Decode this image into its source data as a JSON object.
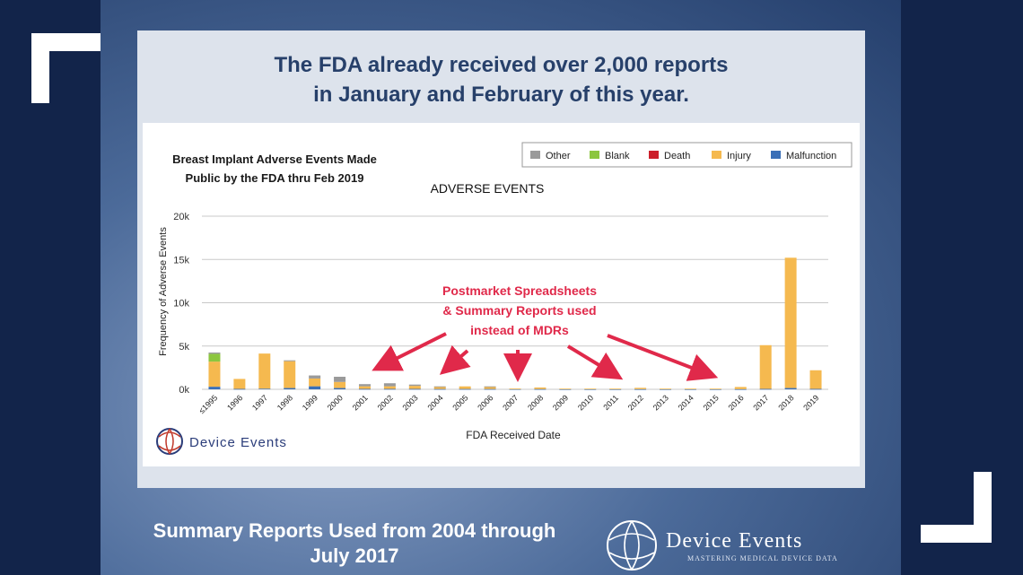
{
  "headline": {
    "line1": "The FDA already received over 2,000 reports",
    "line2": "in January and February of this year."
  },
  "chart_title": {
    "line1": "Breast Implant Adverse Events Made",
    "line2": "Public by the FDA thru Feb 2019"
  },
  "chart_data": {
    "type": "bar",
    "stacked": true,
    "title": "ADVERSE EVENTS",
    "xlabel": "FDA Received Date",
    "ylabel": "Frequency of Adverse Events",
    "ylim": [
      0,
      20000
    ],
    "yticks": [
      "0k",
      "5k",
      "10k",
      "15k",
      "20k"
    ],
    "grid": true,
    "legend_position": "top-right",
    "categories": [
      "≤1995",
      "1996",
      "1997",
      "1998",
      "1999",
      "2000",
      "2001",
      "2002",
      "2003",
      "2004",
      "2005",
      "2006",
      "2007",
      "2008",
      "2009",
      "2010",
      "2011",
      "2012",
      "2013",
      "2014",
      "2015",
      "2016",
      "2017",
      "2018",
      "2019"
    ],
    "series": [
      {
        "name": "Malfunction",
        "color": "#3a6fb7",
        "values": [
          300,
          50,
          80,
          150,
          350,
          150,
          50,
          50,
          50,
          40,
          40,
          40,
          30,
          30,
          20,
          20,
          20,
          20,
          20,
          20,
          20,
          20,
          50,
          150,
          50
        ]
      },
      {
        "name": "Injury",
        "color": "#f5b94f",
        "values": [
          2900,
          1150,
          4050,
          3100,
          900,
          700,
          300,
          300,
          350,
          250,
          300,
          250,
          60,
          180,
          60,
          60,
          60,
          150,
          60,
          60,
          60,
          250,
          5050,
          15050,
          2150
        ]
      },
      {
        "name": "Death",
        "color": "#cc1f2a",
        "values": [
          0,
          0,
          0,
          0,
          0,
          0,
          0,
          0,
          0,
          0,
          0,
          0,
          0,
          0,
          0,
          0,
          0,
          0,
          0,
          0,
          0,
          0,
          0,
          0,
          0
        ]
      },
      {
        "name": "Blank",
        "color": "#8cc63f",
        "values": [
          900,
          0,
          0,
          0,
          0,
          0,
          0,
          0,
          0,
          0,
          0,
          0,
          0,
          0,
          0,
          0,
          0,
          0,
          0,
          0,
          0,
          0,
          0,
          0,
          0
        ]
      },
      {
        "name": "Other",
        "color": "#9a9a9a",
        "values": [
          150,
          0,
          0,
          100,
          350,
          600,
          250,
          350,
          150,
          50,
          0,
          50,
          0,
          0,
          0,
          0,
          0,
          0,
          0,
          0,
          0,
          0,
          0,
          0,
          0
        ]
      }
    ],
    "legend_order": [
      "Other",
      "Blank",
      "Death",
      "Injury",
      "Malfunction"
    ],
    "annotation": {
      "lines": [
        "Postmarket Spreadsheets",
        "& Summary Reports used",
        "instead of MDRs"
      ],
      "color": "#e0294a"
    }
  },
  "logo_small": {
    "text": "Device Events"
  },
  "caption": {
    "line1": "Summary Reports Used from 2004 through",
    "line2": "July 2017"
  },
  "brand": {
    "name": "Device Events",
    "tagline": "MASTERING MEDICAL DEVICE DATA"
  }
}
